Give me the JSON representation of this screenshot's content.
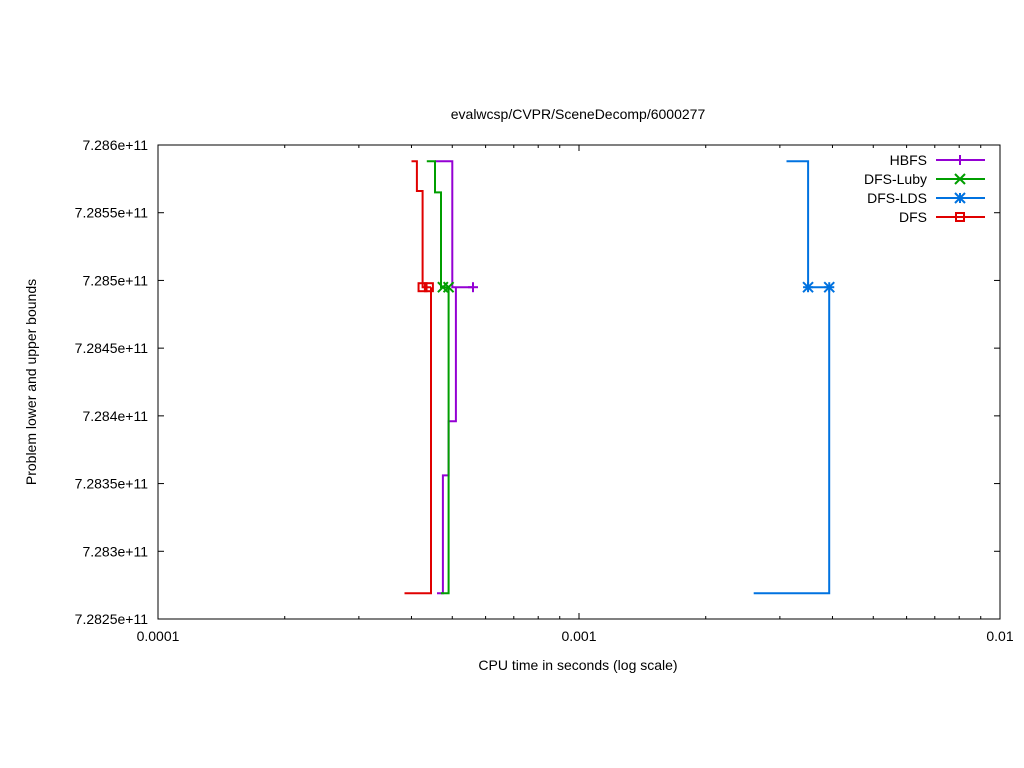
{
  "chart_data": {
    "type": "line",
    "title": "evalwcsp/CVPR/SceneDecomp/6000277",
    "xlabel": "CPU time in seconds (log scale)",
    "ylabel": "Problem lower and upper bounds",
    "x_scale": "log",
    "xlim": [
      0.0001,
      0.01
    ],
    "ylim": [
      728250000000,
      728600000000
    ],
    "x_ticks": [
      {
        "value": 0.0001,
        "label": "0.0001"
      },
      {
        "value": 0.001,
        "label": "0.001"
      },
      {
        "value": 0.01,
        "label": "0.01"
      }
    ],
    "y_ticks": [
      {
        "value": 728250000000,
        "label": "7.2825e+11"
      },
      {
        "value": 728300000000,
        "label": "7.283e+11"
      },
      {
        "value": 728350000000,
        "label": "7.2835e+11"
      },
      {
        "value": 728400000000,
        "label": "7.284e+11"
      },
      {
        "value": 728450000000,
        "label": "7.2845e+11"
      },
      {
        "value": 728500000000,
        "label": "7.285e+11"
      },
      {
        "value": 728550000000,
        "label": "7.2855e+11"
      },
      {
        "value": 728600000000,
        "label": "7.286e+11"
      }
    ],
    "grid": false,
    "legend_position": "top-right",
    "series": [
      {
        "name": "HBFS",
        "color": "#9400d3",
        "marker": "plus",
        "upper": [
          [
            0.000455,
            728588000000
          ],
          [
            0.0005,
            728588000000
          ],
          [
            0.0005,
            728495000000
          ],
          [
            0.00056,
            728495000000
          ]
        ],
        "lower": [
          [
            0.00046,
            728269000000
          ],
          [
            0.000475,
            728269000000
          ],
          [
            0.000475,
            728356000000
          ],
          [
            0.00049,
            728356000000
          ],
          [
            0.00049,
            728396000000
          ],
          [
            0.00051,
            728396000000
          ],
          [
            0.00051,
            728495000000
          ]
        ],
        "markers": [
          [
            0.00056,
            728495000000
          ]
        ]
      },
      {
        "name": "DFS-Luby",
        "color": "#009e00",
        "marker": "x",
        "upper": [
          [
            0.000435,
            728588000000
          ],
          [
            0.000455,
            728588000000
          ],
          [
            0.000455,
            728565000000
          ],
          [
            0.00047,
            728565000000
          ],
          [
            0.00047,
            728495000000
          ],
          [
            0.00049,
            728495000000
          ]
        ],
        "lower": [
          [
            0.00047,
            728269000000
          ],
          [
            0.00049,
            728269000000
          ],
          [
            0.00049,
            728495000000
          ]
        ],
        "markers": [
          [
            0.000475,
            728495000000
          ],
          [
            0.00049,
            728495000000
          ]
        ]
      },
      {
        "name": "DFS-LDS",
        "color": "#0072e0",
        "marker": "star",
        "upper": [
          [
            0.00311,
            728588000000
          ],
          [
            0.0035,
            728588000000
          ],
          [
            0.0035,
            728495000000
          ],
          [
            0.00393,
            728495000000
          ]
        ],
        "lower": [
          [
            0.0026,
            728269000000
          ],
          [
            0.00393,
            728269000000
          ],
          [
            0.00393,
            728495000000
          ]
        ],
        "markers": [
          [
            0.0035,
            728495000000
          ],
          [
            0.00393,
            728495000000
          ]
        ]
      },
      {
        "name": "DFS",
        "color": "#e00000",
        "marker": "square",
        "upper": [
          [
            0.0004,
            728588000000
          ],
          [
            0.000412,
            728588000000
          ],
          [
            0.000412,
            728566000000
          ],
          [
            0.000425,
            728566000000
          ],
          [
            0.000425,
            728495000000
          ],
          [
            0.000445,
            728495000000
          ]
        ],
        "lower": [
          [
            0.000385,
            728269000000
          ],
          [
            0.000445,
            728269000000
          ],
          [
            0.000445,
            728495000000
          ]
        ],
        "markers": [
          [
            0.000425,
            728495000000
          ],
          [
            0.00044,
            728495000000
          ]
        ]
      }
    ]
  }
}
